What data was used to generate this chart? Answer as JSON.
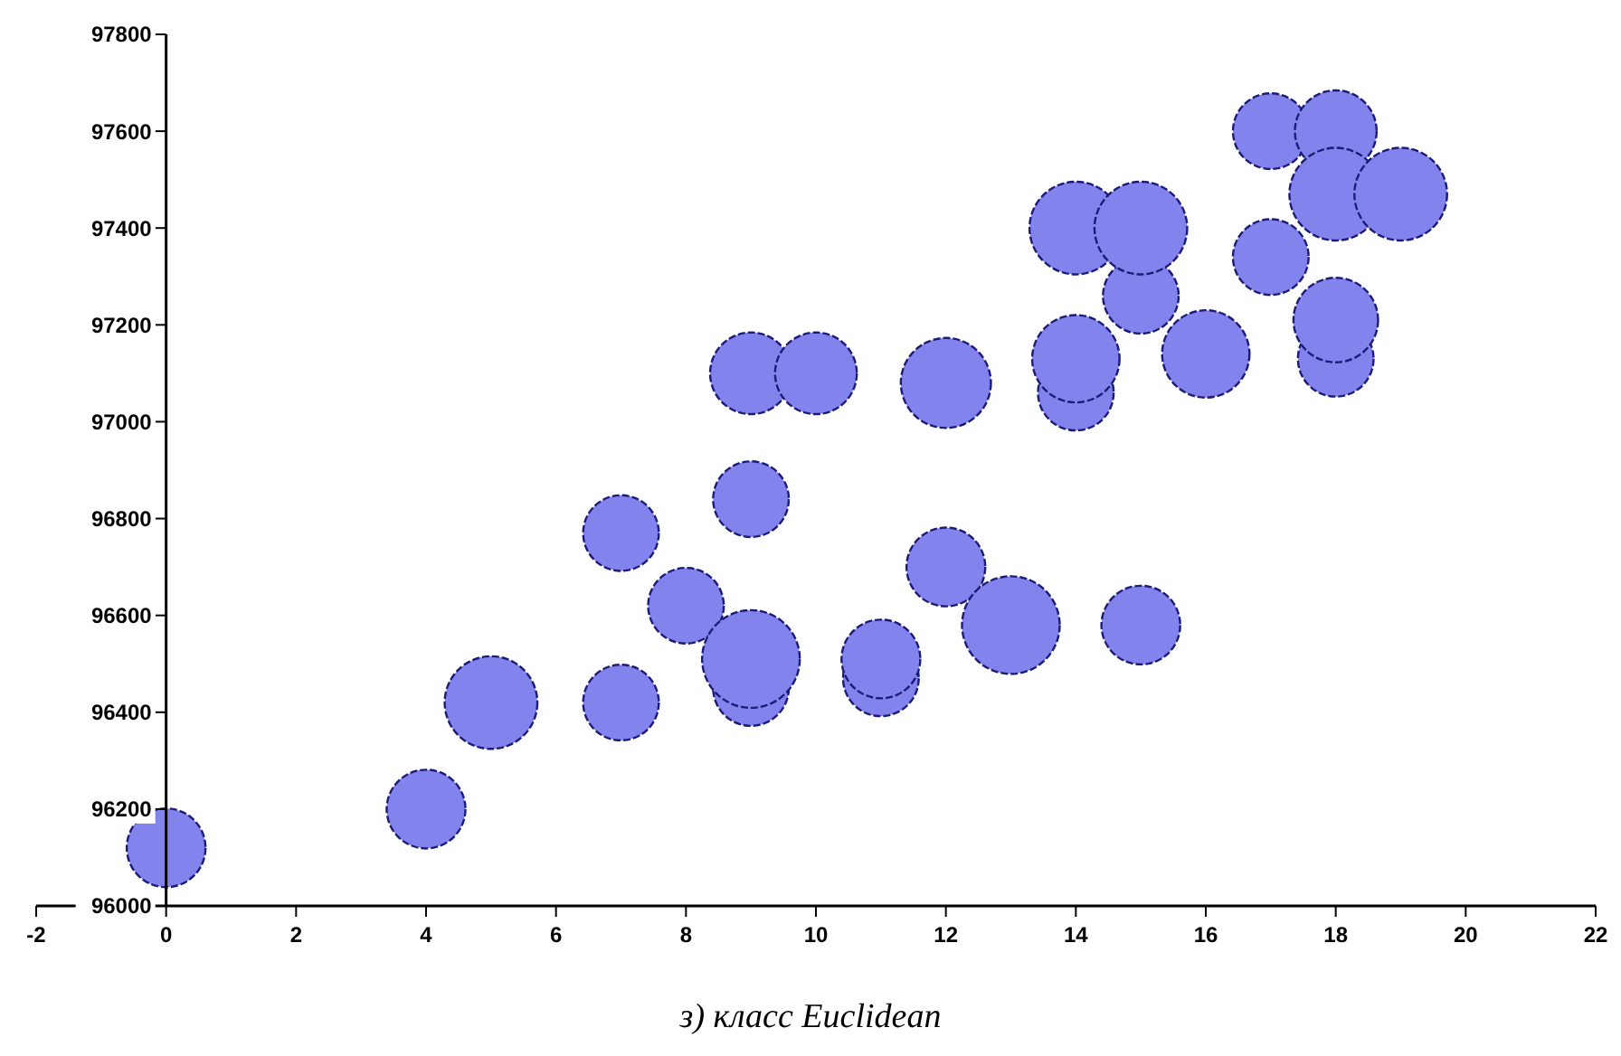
{
  "chart_data": {
    "type": "bubble",
    "title": "з) класс Euclidean",
    "x": [
      0,
      4,
      5,
      7,
      7,
      8,
      9,
      9,
      9,
      9,
      10,
      11,
      11,
      12,
      12,
      13,
      14,
      14,
      14,
      15,
      15,
      15,
      16,
      17,
      17,
      18,
      18,
      18,
      18,
      19
    ],
    "values": [
      96120,
      96200,
      96420,
      96420,
      96770,
      96620,
      96840,
      96450,
      96510,
      97100,
      97100,
      96470,
      96510,
      96700,
      97080,
      96580,
      97060,
      97130,
      97400,
      97260,
      97400,
      96580,
      97140,
      97340,
      97600,
      97130,
      97210,
      97600,
      97470,
      97470
    ],
    "sizes": [
      0.65,
      0.65,
      0.9,
      0.6,
      0.6,
      0.6,
      0.6,
      0.6,
      1,
      0.7,
      0.7,
      0.6,
      0.65,
      0.65,
      0.85,
      1,
      0.6,
      0.8,
      0.9,
      0.6,
      0.9,
      0.65,
      0.8,
      0.6,
      0.6,
      0.6,
      0.75,
      0.7,
      0.9,
      0.9
    ],
    "color": "#8383ee",
    "xlim": [
      -2,
      22
    ],
    "xticks": [
      -2,
      0,
      2,
      4,
      6,
      8,
      10,
      12,
      14,
      16,
      18,
      20,
      22
    ],
    "ylim": [
      96000,
      97800
    ],
    "yticks": [
      96000,
      96200,
      96400,
      96600,
      96800,
      97000,
      97200,
      97400,
      97600,
      97800
    ],
    "grid": false
  }
}
